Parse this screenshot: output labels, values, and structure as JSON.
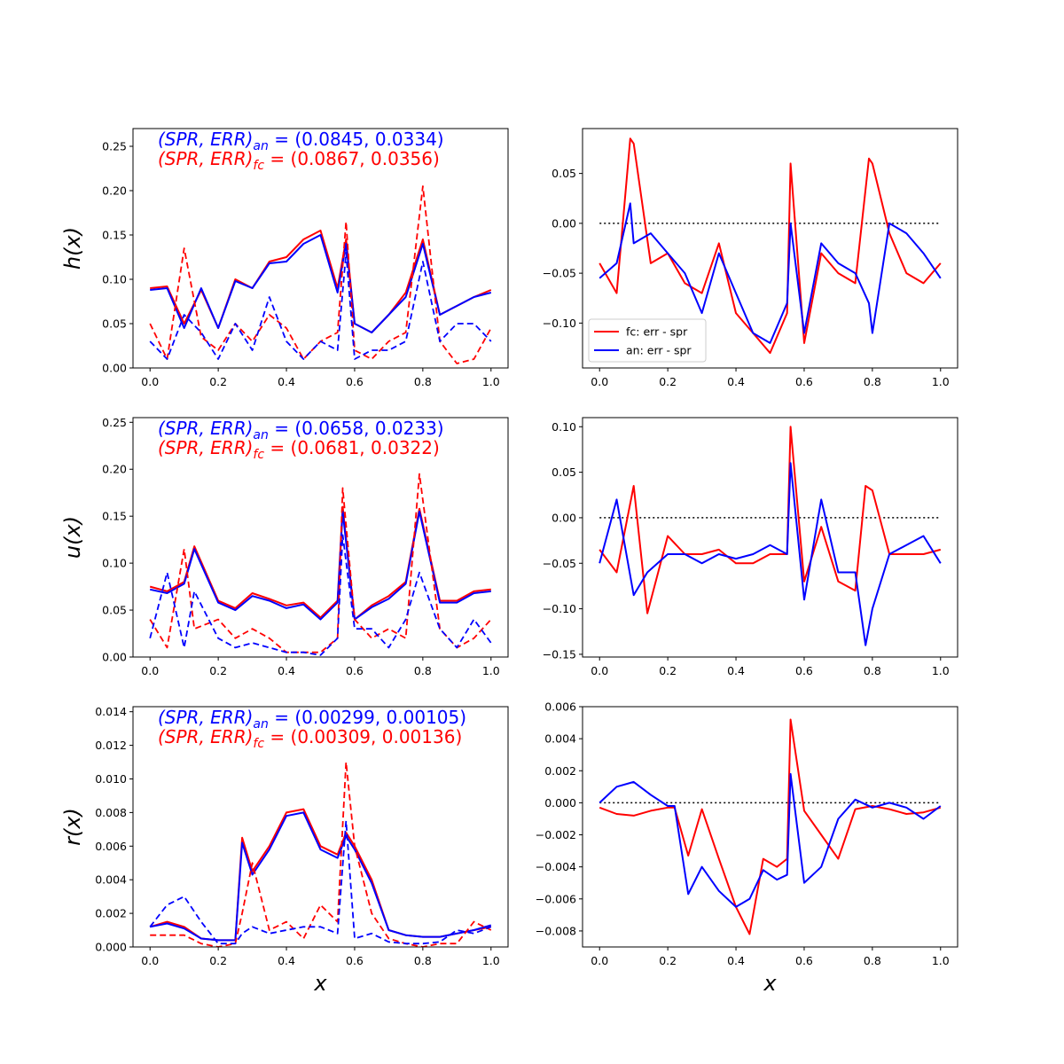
{
  "colors": {
    "fc": "#ff0000",
    "an": "#0000ff",
    "zero_line": "#000000"
  },
  "chart_data": [
    {
      "type": "line",
      "ylabel": "h(x)",
      "xlabel": "",
      "xlim": [
        -0.05,
        1.05
      ],
      "ylim": [
        0,
        0.27
      ],
      "xticks": [
        "0.0",
        "0.2",
        "0.4",
        "0.6",
        "0.8",
        "1.0"
      ],
      "yticks": [
        "0.00",
        "0.05",
        "0.10",
        "0.15",
        "0.20",
        "0.25"
      ],
      "annotations": [
        {
          "series": "an",
          "label": "(SPR, ERR)",
          "sub": "an",
          "value": " = (0.0845, 0.0334)"
        },
        {
          "series": "fc",
          "label": "(SPR, ERR)",
          "sub": "fc",
          "value": " = (0.0867, 0.0356)"
        }
      ],
      "x": [
        0.0,
        0.05,
        0.1,
        0.15,
        0.2,
        0.25,
        0.3,
        0.35,
        0.4,
        0.45,
        0.5,
        0.55,
        0.575,
        0.6,
        0.65,
        0.7,
        0.75,
        0.8,
        0.85,
        0.9,
        0.95,
        1.0
      ],
      "series": [
        {
          "key": "fc",
          "style": "solid",
          "values": [
            0.09,
            0.092,
            0.05,
            0.088,
            0.045,
            0.1,
            0.09,
            0.12,
            0.125,
            0.145,
            0.155,
            0.09,
            0.145,
            0.05,
            0.04,
            0.06,
            0.085,
            0.145,
            0.06,
            0.07,
            0.08,
            0.088
          ]
        },
        {
          "key": "an",
          "style": "solid",
          "values": [
            0.088,
            0.09,
            0.045,
            0.09,
            0.045,
            0.098,
            0.09,
            0.118,
            0.12,
            0.14,
            0.15,
            0.085,
            0.14,
            0.05,
            0.04,
            0.06,
            0.08,
            0.14,
            0.06,
            0.07,
            0.08,
            0.085
          ]
        },
        {
          "key": "fc",
          "style": "dashed",
          "values": [
            0.05,
            0.01,
            0.135,
            0.035,
            0.02,
            0.05,
            0.03,
            0.06,
            0.045,
            0.01,
            0.03,
            0.04,
            0.165,
            0.02,
            0.01,
            0.03,
            0.04,
            0.205,
            0.03,
            0.005,
            0.01,
            0.045
          ]
        },
        {
          "key": "an",
          "style": "dashed",
          "values": [
            0.03,
            0.01,
            0.06,
            0.04,
            0.01,
            0.05,
            0.02,
            0.08,
            0.03,
            0.01,
            0.03,
            0.02,
            0.13,
            0.01,
            0.02,
            0.02,
            0.03,
            0.12,
            0.03,
            0.05,
            0.05,
            0.03
          ]
        }
      ]
    },
    {
      "type": "line",
      "xlabel": "",
      "xlim": [
        -0.05,
        1.05
      ],
      "ylim": [
        -0.145,
        0.095
      ],
      "xticks": [
        "0.0",
        "0.2",
        "0.4",
        "0.6",
        "0.8",
        "1.0"
      ],
      "yticks": [
        "−0.10",
        "−0.05",
        "0.00",
        "0.05"
      ],
      "ytick_values": [
        -0.1,
        -0.05,
        0.0,
        0.05
      ],
      "zero_line": [
        0.0,
        1.0
      ],
      "legend": {
        "placement": "lower-left",
        "entries": [
          {
            "key": "fc",
            "label": "fc: err  - spr"
          },
          {
            "key": "an",
            "label": "an: err - spr"
          }
        ]
      },
      "x": [
        0.0,
        0.05,
        0.09,
        0.1,
        0.15,
        0.2,
        0.25,
        0.3,
        0.35,
        0.4,
        0.45,
        0.5,
        0.55,
        0.56,
        0.6,
        0.65,
        0.7,
        0.75,
        0.79,
        0.8,
        0.85,
        0.9,
        0.95,
        1.0
      ],
      "series": [
        {
          "key": "fc",
          "style": "solid",
          "values": [
            -0.04,
            -0.07,
            0.085,
            0.08,
            -0.04,
            -0.03,
            -0.06,
            -0.07,
            -0.02,
            -0.09,
            -0.11,
            -0.13,
            -0.09,
            0.06,
            -0.12,
            -0.03,
            -0.05,
            -0.06,
            0.065,
            0.06,
            -0.01,
            -0.05,
            -0.06,
            -0.04
          ]
        },
        {
          "key": "an",
          "style": "solid",
          "values": [
            -0.055,
            -0.04,
            0.02,
            -0.02,
            -0.01,
            -0.03,
            -0.05,
            -0.09,
            -0.03,
            -0.07,
            -0.11,
            -0.12,
            -0.08,
            0.0,
            -0.11,
            -0.02,
            -0.04,
            -0.05,
            -0.08,
            -0.11,
            0.0,
            -0.01,
            -0.03,
            -0.055
          ]
        }
      ]
    },
    {
      "type": "line",
      "ylabel": "u(x)",
      "xlabel": "",
      "xlim": [
        -0.05,
        1.05
      ],
      "ylim": [
        0,
        0.255
      ],
      "xticks": [
        "0.0",
        "0.2",
        "0.4",
        "0.6",
        "0.8",
        "1.0"
      ],
      "yticks": [
        "0.00",
        "0.05",
        "0.10",
        "0.15",
        "0.20",
        "0.25"
      ],
      "annotations": [
        {
          "series": "an",
          "label": "(SPR, ERR)",
          "sub": "an",
          "value": " = (0.0658, 0.0233)"
        },
        {
          "series": "fc",
          "label": "(SPR, ERR)",
          "sub": "fc",
          "value": " = (0.0681, 0.0322)"
        }
      ],
      "x": [
        0.0,
        0.05,
        0.1,
        0.13,
        0.2,
        0.25,
        0.3,
        0.35,
        0.4,
        0.45,
        0.5,
        0.55,
        0.565,
        0.6,
        0.65,
        0.7,
        0.75,
        0.79,
        0.85,
        0.9,
        0.95,
        1.0
      ],
      "series": [
        {
          "key": "fc",
          "style": "solid",
          "values": [
            0.075,
            0.07,
            0.08,
            0.118,
            0.06,
            0.052,
            0.068,
            0.062,
            0.055,
            0.058,
            0.042,
            0.06,
            0.16,
            0.04,
            0.055,
            0.065,
            0.08,
            0.158,
            0.06,
            0.06,
            0.07,
            0.072
          ]
        },
        {
          "key": "an",
          "style": "solid",
          "values": [
            0.072,
            0.068,
            0.078,
            0.115,
            0.058,
            0.05,
            0.065,
            0.06,
            0.052,
            0.056,
            0.04,
            0.058,
            0.155,
            0.04,
            0.053,
            0.062,
            0.078,
            0.155,
            0.058,
            0.058,
            0.068,
            0.07
          ]
        },
        {
          "key": "fc",
          "style": "dashed",
          "values": [
            0.04,
            0.01,
            0.115,
            0.03,
            0.04,
            0.02,
            0.03,
            0.02,
            0.005,
            0.005,
            0.005,
            0.02,
            0.18,
            0.04,
            0.02,
            0.03,
            0.02,
            0.195,
            0.03,
            0.01,
            0.02,
            0.04
          ]
        },
        {
          "key": "an",
          "style": "dashed",
          "values": [
            0.02,
            0.09,
            0.01,
            0.07,
            0.02,
            0.01,
            0.015,
            0.01,
            0.005,
            0.005,
            0.002,
            0.02,
            0.13,
            0.03,
            0.03,
            0.01,
            0.04,
            0.09,
            0.03,
            0.01,
            0.04,
            0.015
          ]
        }
      ]
    },
    {
      "type": "line",
      "xlabel": "",
      "xlim": [
        -0.05,
        1.05
      ],
      "ylim": [
        -0.153,
        0.11
      ],
      "xticks": [
        "0.0",
        "0.2",
        "0.4",
        "0.6",
        "0.8",
        "1.0"
      ],
      "yticks": [
        "−0.15",
        "−0.10",
        "−0.05",
        "0.00",
        "0.05",
        "0.10"
      ],
      "ytick_values": [
        -0.15,
        -0.1,
        -0.05,
        0.0,
        0.05,
        0.1
      ],
      "zero_line": [
        0.0,
        1.0
      ],
      "x": [
        0.0,
        0.05,
        0.1,
        0.14,
        0.2,
        0.25,
        0.3,
        0.35,
        0.4,
        0.45,
        0.5,
        0.55,
        0.56,
        0.6,
        0.65,
        0.7,
        0.75,
        0.78,
        0.8,
        0.85,
        0.9,
        0.95,
        1.0
      ],
      "series": [
        {
          "key": "fc",
          "style": "solid",
          "values": [
            -0.035,
            -0.06,
            0.035,
            -0.105,
            -0.02,
            -0.04,
            -0.04,
            -0.035,
            -0.05,
            -0.05,
            -0.04,
            -0.04,
            0.1,
            -0.07,
            -0.01,
            -0.07,
            -0.08,
            0.035,
            0.03,
            -0.04,
            -0.04,
            -0.04,
            -0.035
          ]
        },
        {
          "key": "an",
          "style": "solid",
          "values": [
            -0.05,
            0.02,
            -0.085,
            -0.06,
            -0.04,
            -0.04,
            -0.05,
            -0.04,
            -0.045,
            -0.04,
            -0.03,
            -0.04,
            0.06,
            -0.09,
            0.02,
            -0.06,
            -0.06,
            -0.14,
            -0.1,
            -0.04,
            -0.03,
            -0.02,
            -0.05
          ]
        }
      ]
    },
    {
      "type": "line",
      "ylabel": "r(x)",
      "xlabel": "x",
      "xlim": [
        -0.05,
        1.05
      ],
      "ylim": [
        0,
        0.0143
      ],
      "xticks": [
        "0.0",
        "0.2",
        "0.4",
        "0.6",
        "0.8",
        "1.0"
      ],
      "yticks": [
        "0.000",
        "0.002",
        "0.004",
        "0.006",
        "0.008",
        "0.010",
        "0.012",
        "0.014"
      ],
      "annotations": [
        {
          "series": "an",
          "label": "(SPR, ERR)",
          "sub": "an",
          "value": " = (0.00299, 0.00105)"
        },
        {
          "series": "fc",
          "label": "(SPR, ERR)",
          "sub": "fc",
          "value": " = (0.00309, 0.00136)"
        }
      ],
      "x": [
        0.0,
        0.05,
        0.1,
        0.15,
        0.2,
        0.25,
        0.27,
        0.3,
        0.35,
        0.4,
        0.45,
        0.5,
        0.55,
        0.575,
        0.6,
        0.65,
        0.7,
        0.75,
        0.8,
        0.85,
        0.9,
        0.95,
        1.0
      ],
      "series": [
        {
          "key": "fc",
          "style": "solid",
          "values": [
            0.0012,
            0.0015,
            0.0012,
            0.0005,
            0.0004,
            0.0004,
            0.0065,
            0.0045,
            0.006,
            0.008,
            0.0082,
            0.006,
            0.0055,
            0.0068,
            0.006,
            0.004,
            0.001,
            0.0007,
            0.0006,
            0.0006,
            0.0008,
            0.001,
            0.0012
          ]
        },
        {
          "key": "an",
          "style": "solid",
          "values": [
            0.0012,
            0.0014,
            0.0011,
            0.0005,
            0.0004,
            0.0004,
            0.0062,
            0.0043,
            0.0058,
            0.0078,
            0.008,
            0.0058,
            0.0053,
            0.0066,
            0.0058,
            0.0038,
            0.001,
            0.0007,
            0.0006,
            0.0006,
            0.0008,
            0.001,
            0.0013
          ]
        },
        {
          "key": "fc",
          "style": "dashed",
          "values": [
            0.0007,
            0.0007,
            0.0007,
            0.0002,
            0.0,
            0.0002,
            0.002,
            0.005,
            0.001,
            0.0015,
            0.0005,
            0.0025,
            0.0015,
            0.011,
            0.006,
            0.002,
            0.0005,
            0.0002,
            0.0,
            0.0002,
            0.0002,
            0.0015,
            0.001
          ]
        },
        {
          "key": "an",
          "style": "dashed",
          "values": [
            0.0012,
            0.0025,
            0.003,
            0.0015,
            0.0002,
            0.0002,
            0.0008,
            0.0012,
            0.0008,
            0.001,
            0.0012,
            0.0012,
            0.0008,
            0.0075,
            0.0005,
            0.0008,
            0.0003,
            0.0002,
            0.0002,
            0.0003,
            0.001,
            0.0008,
            0.0012
          ]
        }
      ]
    },
    {
      "type": "line",
      "xlabel": "x",
      "xlim": [
        -0.05,
        1.05
      ],
      "ylim": [
        -0.009,
        0.006
      ],
      "xticks": [
        "0.0",
        "0.2",
        "0.4",
        "0.6",
        "0.8",
        "1.0"
      ],
      "yticks": [
        "−0.008",
        "−0.006",
        "−0.004",
        "−0.002",
        "0.000",
        "0.002",
        "0.004",
        "0.006"
      ],
      "ytick_values": [
        -0.008,
        -0.006,
        -0.004,
        -0.002,
        0.0,
        0.002,
        0.004,
        0.006
      ],
      "zero_line": [
        0.0,
        1.0
      ],
      "x": [
        0.0,
        0.05,
        0.1,
        0.15,
        0.2,
        0.22,
        0.26,
        0.3,
        0.35,
        0.4,
        0.44,
        0.48,
        0.52,
        0.55,
        0.56,
        0.6,
        0.65,
        0.7,
        0.75,
        0.8,
        0.85,
        0.9,
        0.95,
        1.0
      ],
      "series": [
        {
          "key": "fc",
          "style": "solid",
          "values": [
            -0.0003,
            -0.0007,
            -0.0008,
            -0.0005,
            -0.0003,
            -0.0003,
            -0.0033,
            -0.0004,
            -0.0035,
            -0.0065,
            -0.0082,
            -0.0035,
            -0.004,
            -0.0035,
            0.0052,
            -0.0005,
            -0.002,
            -0.0035,
            -0.0004,
            -0.0002,
            -0.0004,
            -0.0007,
            -0.0006,
            -0.0003
          ]
        },
        {
          "key": "an",
          "style": "solid",
          "values": [
            0.0,
            0.001,
            0.0013,
            0.0005,
            -0.0002,
            -0.0002,
            -0.0057,
            -0.004,
            -0.0055,
            -0.0065,
            -0.006,
            -0.0042,
            -0.0048,
            -0.0045,
            0.0018,
            -0.005,
            -0.004,
            -0.001,
            0.0002,
            -0.0003,
            0.0,
            -0.0003,
            -0.001,
            -0.0002
          ]
        }
      ]
    }
  ]
}
